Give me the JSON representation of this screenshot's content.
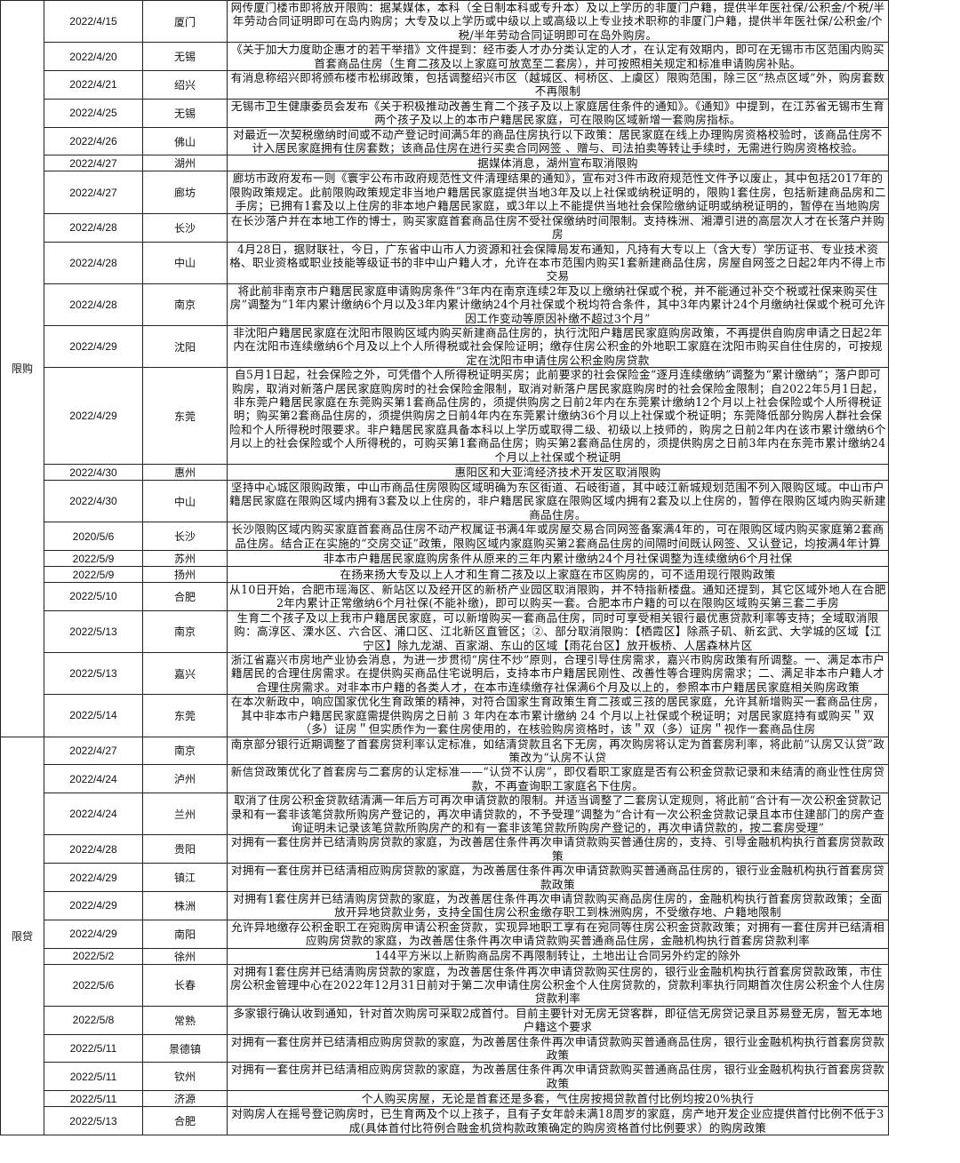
{
  "groups": [
    {
      "category": "限购",
      "rows": [
        {
          "date": "2022/4/15",
          "city": "厦门",
          "text": "网传厦门楼市即将放开限购：据某媒体，本科（全日制本科或专升本）及以上学历的非厦门户籍，提供半年医社保/公积金/个税/半年劳动合同证明即可在岛内购房；大专及以上学历或中级以上或高级以上专业技术职称的非厦门户籍，提供半年医社保/公积金/个税/半年劳动合同证明即可在岛外购房。"
        },
        {
          "date": "2022/4/20",
          "city": "无锡",
          "text": "《关于加大力度助企惠才的若干举措》文件提到：经市委人才办分类认定的人才，在认定有效期内，即可在无锡市市区范围内购买首套商品住房（生育二孩及以上家庭可放宽至二套房），并可按照相关规定和标准申请购房补贴。"
        },
        {
          "date": "2022/4/21",
          "city": "绍兴",
          "text": "有消息称绍兴即将颁布楼市松绑政策，包括调整绍兴市区（越城区、柯桥区、上虞区）限购范围，除三区“热点区域”外，购房套数不再限制"
        },
        {
          "date": "2022/4/25",
          "city": "无锡",
          "text": "无锡市卫生健康委员会发布《关于积极推动改善生育二个孩子及以上家庭居住条件的通知》。《通知》中提到，在江苏省无锡市生育两个孩子及以上的本市户籍居民家庭，可在限购区域新增一套购房指标。"
        },
        {
          "date": "2022/4/26",
          "city": "佛山",
          "text": "对最近一次契税缴纳时间或不动产登记时间满5年的商品住房执行以下政策：居民家庭在线上办理购房资格校验时，该商品住房不计入居民家庭拥有住房套数；该商品住房在进行买卖合同网签 、赠与、司法拍卖等转让手续时，无需进行购房资格校验。"
        },
        {
          "date": "2022/4/27",
          "city": "湖州",
          "text": "据媒体消息，湖州宣布取消限购"
        },
        {
          "date": "2022/4/27",
          "city": "廊坊",
          "text": "廊坊市政府发布一则《寰宇公布市政府规范性文件清理结果的通知》，宣布对3件市政府规范性文件予以废止，其中包括2017年的限购政策规定。此前限购政策规定非当地户籍居民家庭提供当地3年及以上社保或纳税证明的，限购1套住房，包括新建商品房和二手房；已拥有1套及以上住房的非本地户籍居民家庭，或3年以上不能提供当地社会保险缴纳证明或纳税证明的，暂停在当地购房"
        },
        {
          "date": "2022/4/28",
          "city": "长沙",
          "text": "在长沙落户并在本地工作的博士，购买家庭首套商品住房不受社保缴纳时间限制。支持株洲、湘潭引进的高层次人才在长落户并购房"
        },
        {
          "date": "2022/4/28",
          "city": "中山",
          "text": "4月28日，据财联社，今日，广东省中山市人力资源和社会保障局发布通知，凡持有大专以上（含大专）学历证书、专业技术资格、职业资格或职业技能等级证书的非中山户籍人才，允许在本市范围内购买1套新建商品住房，房屋自网签之日起2年内不得上市交易"
        },
        {
          "date": "2022/4/28",
          "city": "南京",
          "text": "将此前非南京市户籍居民家庭申请购房条件“3年内在南京连续2年及以上缴纳社保或个税，并不能通过补交个税或社保来购买住房”调整为“1年内累计缴纳6个月以及3年内累计缴纳24个月社保或个税均符合条件，其中3年内累计24个月缴纳社保或个税可允许因工作变动等原因补缴不超过3个月”"
        },
        {
          "date": "2022/4/29",
          "city": "沈阳",
          "text": "非沈阳户籍居民家庭在沈阳市限购区域内购买新建商品住房的，执行沈阳户籍居民家庭购房政策，不再提供自购房申请之日起2年内在沈阳市连续缴纳6个月及以上个人所得税或社会保险证明；缴存住房公积金的外地职工家庭在沈阳市购买自住住房的，可按规定在沈阳市申请住房公积金购房贷款"
        },
        {
          "date": "2022/4/29",
          "city": "东莞",
          "text": "自5月1日起，社会保险之外，可凭借个人所得税证明买房；此前要求的社会保险金“逐月连续缴纳”调整为“累计缴纳”；落户即可购房，取消对新落户居民家庭购房时的社会保险金限制，取消对新落户居民家庭购房时的社会保险金限制；自2022年5月1日起，非东莞户籍居民家庭在东莞购买第1套商品住房的，须提供购房之日前2年内在东莞累计缴纳12个月以上社会保险或个人所得税证明；购买第2套商品住房的，须提供购房之日前4年内在东莞累计缴纳36个月以上社保或个税证明；东莞降低部分购房人群社会保险和个人所得税时限要求。非户籍居民家庭具备本科以上学历或取得二级、初级以上技师的，购房之日前2年内在该市累计缴纳6个月以上的社会保险或个人所得税的，可购买第1套商品住房；购买第2套商品住房的，须提供购房之日前3年内在东莞市累计缴纳24个月以上社保或个税证明"
        },
        {
          "date": "2022/4/30",
          "city": "惠州",
          "text": "惠阳区和大亚湾经济技术开发区取消限购"
        },
        {
          "date": "2022/4/30",
          "city": "中山",
          "text": "坚持中心城区限购政策，中山市商品住房限购区域明确为东区街道、石岐街道，其中岐江新城规划范围不列入限购区域。中山市户籍居民家庭在限购区域内拥有3套及以上住房的，非户籍居民家庭在限购区域内拥有2套及以上住房的，暂停在限购区域内购买新建商品住房。"
        },
        {
          "date": "2020/5/6",
          "city": "长沙",
          "text": "长沙限购区域内购买家庭首套商品住房不动产权属证书满4年或房屋交易合同网签备案满4年的，可在限购区域内购买家庭第2套商品住房。结合正在实施的“交房交证”政策，限购区域内家庭购买第2套商品住房的间隔时间既认网签、又认登记，均按满4年计算"
        },
        {
          "date": "2022/5/9",
          "city": "苏州",
          "text": "非本市户籍居民家庭购房条件从原来的三年内累计缴纳24个月社保调整为连续缴纳6个月社保"
        },
        {
          "date": "2022/5/9",
          "city": "扬州",
          "text": "在扬来扬大专及以上人才和生育二孩及以上家庭在市区购房的，可不适用现行限购政策"
        },
        {
          "date": "2022/5/10",
          "city": "合肥",
          "text": "从10日开始，合肥市瑶海区、新站区以及经开区的新桥产业园区取消限购，并不特指新楼盘。通知还提到，其它区域外地人在合肥2年内累计正常缴纳6个月社保(不能补缴)，即可以购买一套。合肥本市户籍的可以在限购区域购买第三套二手房"
        },
        {
          "date": "2022/5/13",
          "city": "南京",
          "text": "生育二个孩子及以上我市户籍居民家庭，可以新增购买一套商品住房，同时可享受相关银行最优惠贷款利率等支持；全域取消限购：高淳区、溧水区、六合区、浦口区、江北新区直管区；②、部分取消限购：【栖霞区】除燕子矶、新玄武、大学城的区域【江宁区】除九龙湖、百家湖、东山的区域【雨花台区】放开板桥、人居森林片区"
        },
        {
          "date": "2022/5/13",
          "city": "嘉兴",
          "text": "浙江省嘉兴市房地产业协会消息，为进一步贯彻“房住不炒”原则，合理引导住房需求，嘉兴市购房政策有所调整。一、满足本市户籍居民的合理住房需求。在提供购买商品住宅说明后，支持本市户籍居民刚性、改善性等合理购房需求；二、满足非本市户籍人才合理住房需求。对非本市户籍的各类人才，在本市连续缴存社保满6个月及以上的，参照本市户籍居民家庭相关购房政策"
        },
        {
          "date": "2022/5/14",
          "city": "东莞",
          "text": "在本次新政中，响应国家优化生育政策的精神，对符合国家生育政策生育二孩或三孩的居民家庭，允许其新增购买一套商品住房，其中非本市户籍居民家庭需提供购房之日前 3 年内在本市累计缴纳 24 个月以上社保或个税证明；对居民家庭持有或购买＂双（多）证房＂但实质作为一套住房使用的，在核验购房资格时，该＂双（多）证房＂视作一套商品住房"
        }
      ]
    },
    {
      "category": "限贷",
      "rows": [
        {
          "date": "2022/4/27",
          "city": "南京",
          "text": "南京部分银行近期调整了首套房贷利率认定标准，如结清贷款且名下无房，再次购房将认定为首套房利率，将此前“认房又认贷”政策改为“认房不认贷"
        },
        {
          "date": "2022/4/24",
          "city": "泸州",
          "text": "新信贷政策优化了首套房与二套房的认定标准——“认贷不认房”，即仅看职工家庭是否有公积金贷款记录和未结清的商业性住房贷款，不再查询职工家庭名下住房。"
        },
        {
          "date": "2022/4/24",
          "city": "兰州",
          "text": "取消了住房公积金贷款结清满一年后方可再次申请贷款的限制。并适当调整了二套房认定规则，将此前“合计有一次公积金贷款记录和有一套非该笔贷款所购房产登记的，再次申请贷款的，不予受理”调整为“合计有一次公积金贷款记录且本市住建部门的房产查询证明未记录该笔贷款所购房产的和有一套非该笔贷款所购房产登记的，再次申请贷款的，按二套房受理”"
        },
        {
          "date": "2022/4/28",
          "city": "贵阳",
          "text": "对拥有一套住房并已结清购房贷款的家庭，为改善居住条件再次申请贷款购买普通住房的，支持、引导金融机构执行首套房贷款政策"
        },
        {
          "date": "2022/4/29",
          "city": "镇江",
          "text": "对拥有一套住房并已结清相应购房贷款的家庭，为改善居住条件再次申请贷款购买普通商品住房的，银行业金融机构执行首套房贷款政策"
        },
        {
          "date": "2022/4/29",
          "city": "株洲",
          "text": "对拥有1套住房并已结清购房贷款的家庭，为改善居住条件再次申请贷款购买商品房住房的，金融机构执行首套房贷款政策；全面放开异地贷款业务，支持全国住房公积金缴存职工到株洲购房，不受缴存地、户籍地限制"
        },
        {
          "date": "2022/4/29",
          "city": "南阳",
          "text": "允许异地缴存公积金职工在宛购房申请公积金贷款，实现异地职工享有在宛同等住房公积金贷款政策；对拥有一套住房并已结清相应购房贷款的家庭，为改善居住条件再次申请贷款购买普通商品住房，金融机构执行首套房贷款利率"
        },
        {
          "date": "2022/5/2",
          "city": "徐州",
          "text": "144平方米以上新购商品房不再限制转让，土地出让合同另外约定的除外"
        },
        {
          "date": "2022/5/6",
          "city": "长春",
          "text": "对拥有1套住房并已结清购房贷款的家庭，为改善居住条件再次申请贷款购买住房的，银行业金融机构执行首套房贷款政策，市住房公积金管理中心在2022年12月31日前对于第二次申请住房公积金个人住房贷款的，贷款利率执行同期首次住房公积金个人住房贷款利率"
        },
        {
          "date": "2022/5/8",
          "city": "常熟",
          "text": "多家银行确认收到通知，针对首次购房可采取2成首付。目前主要针对无房无贷客群，即征信无房贷记录且苏易登无房，暂无本地户籍这个要求"
        },
        {
          "date": "2022/5/11",
          "city": "景德镇",
          "text": "对拥有一套住房并已结清相应购房贷款的家庭，为改善居住条件再次申请贷款购买普通商品住房，银行业金融机构执行首套房贷款政策"
        },
        {
          "date": "2022/5/11",
          "city": "钦州",
          "text": "对拥有一套住房并已结清相应购房贷款的家庭，为改善居住条件再次申请贷款购买普通商品住房，银行业金融机构执行首套房贷款政策"
        },
        {
          "date": "2022/5/11",
          "city": "济源",
          "text": "个人购买房屋，无论是首套还是多套，气住房按揭贷款首付比例均按20%执行"
        },
        {
          "date": "2022/5/13",
          "city": "合肥",
          "text": "对购房人在摇号登记购房时，已生育两及个以上孩子，且有子女年龄未满18周岁的家庭，房产地开发企业应提供首付比例不低于3成(具体首付比符例合融金机贷构款政策确定的购房资格首付比例要求）的购房政策"
        }
      ]
    }
  ]
}
